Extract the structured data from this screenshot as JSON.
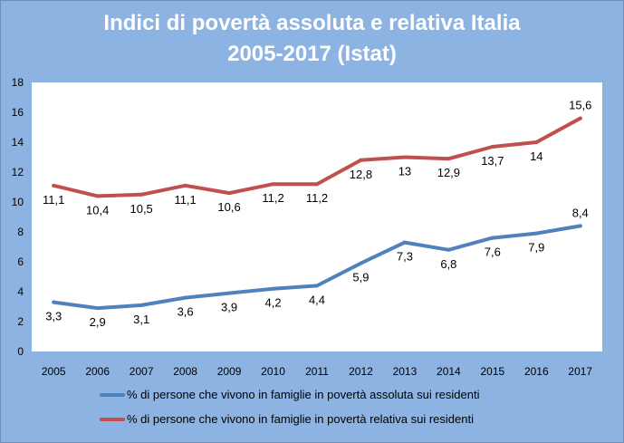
{
  "chart_data": {
    "type": "line",
    "title": "Indici di povertà assoluta e relativa Italia",
    "subtitle": "2005-2017 (Istat)",
    "x": [
      "2005",
      "2006",
      "2007",
      "2008",
      "2009",
      "2010",
      "2011",
      "2012",
      "2013",
      "2014",
      "2015",
      "2016",
      "2017"
    ],
    "ylim": [
      0,
      18
    ],
    "yticks": [
      0,
      2,
      4,
      6,
      8,
      10,
      12,
      14,
      16,
      18
    ],
    "grid": false,
    "legend_position": "bottom",
    "series": [
      {
        "name": "% di persone che vivono in famiglie in povertà assoluta sui residenti",
        "color": "#4f81bd",
        "values": [
          3.3,
          2.9,
          3.1,
          3.6,
          3.9,
          4.2,
          4.4,
          5.9,
          7.3,
          6.8,
          7.6,
          7.9,
          8.4
        ],
        "labels": [
          "3,3",
          "2,9",
          "3,1",
          "3,6",
          "3,9",
          "4,2",
          "4,4",
          "5,9",
          "7,3",
          "6,8",
          "7,6",
          "7,9",
          "8,4"
        ]
      },
      {
        "name": "% di persone che vivono in famiglie in povertà relativa sui residenti",
        "color": "#c0504d",
        "values": [
          11.1,
          10.4,
          10.5,
          11.1,
          10.6,
          11.2,
          11.2,
          12.8,
          13,
          12.9,
          13.7,
          14,
          15.6
        ],
        "labels": [
          "11,1",
          "10,4",
          "10,5",
          "11,1",
          "10,6",
          "11,2",
          "11,2",
          "12,8",
          "13",
          "12,9",
          "13,7",
          "14",
          "15,6"
        ]
      }
    ]
  }
}
